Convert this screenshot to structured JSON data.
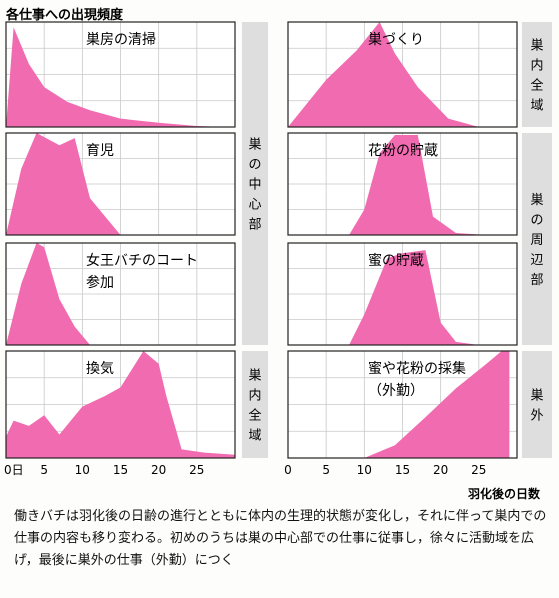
{
  "chart_data": {
    "type": "area",
    "title": "各仕事への出現頻度",
    "xlabel": "羽化後の日数",
    "x_tick_labels": {
      "left": [
        "0日",
        "5",
        "10",
        "15",
        "20",
        "25"
      ],
      "right": [
        "0",
        "5",
        "10",
        "15",
        "20",
        "25"
      ]
    },
    "xlim": [
      0,
      30
    ],
    "ylim": [
      0,
      100
    ],
    "grid": true,
    "fill_color": "#f06bb0",
    "grid_color": "#c8c8c8",
    "panels": [
      {
        "title_lines": [
          "巣房の清掃"
        ],
        "col": 0,
        "row": 0,
        "x": [
          0,
          1,
          3,
          5,
          8,
          11,
          15,
          20,
          25,
          29
        ],
        "y": [
          0,
          95,
          60,
          38,
          24,
          16,
          8,
          4,
          1,
          0
        ]
      },
      {
        "title_lines": [
          "巣づくり"
        ],
        "col": 1,
        "row": 0,
        "x": [
          0,
          5,
          9,
          12,
          14,
          17,
          21,
          25
        ],
        "y": [
          0,
          45,
          73,
          100,
          70,
          38,
          8,
          0
        ]
      },
      {
        "title_lines": [
          "育児"
        ],
        "col": 0,
        "row": 1,
        "x": [
          0,
          2,
          4,
          7,
          9,
          11,
          13,
          15
        ],
        "y": [
          0,
          65,
          100,
          88,
          95,
          36,
          18,
          0
        ]
      },
      {
        "title_lines": [
          "花粉の貯蔵"
        ],
        "col": 1,
        "row": 1,
        "x": [
          0,
          8,
          10,
          12,
          14,
          17,
          19,
          22,
          26
        ],
        "y": [
          0,
          0,
          25,
          80,
          98,
          98,
          18,
          2,
          0
        ]
      },
      {
        "title_lines": [
          "女王バチのコート",
          "参加"
        ],
        "col": 0,
        "row": 2,
        "x": [
          0,
          2,
          4,
          5,
          7,
          9,
          11
        ],
        "y": [
          0,
          60,
          100,
          96,
          45,
          18,
          0
        ]
      },
      {
        "title_lines": [
          "蜜の貯蔵"
        ],
        "col": 1,
        "row": 2,
        "x": [
          0,
          8,
          10,
          13,
          15,
          18,
          20,
          22,
          25
        ],
        "y": [
          0,
          0,
          30,
          85,
          90,
          93,
          22,
          3,
          0
        ]
      },
      {
        "title_lines": [
          "換気"
        ],
        "col": 0,
        "row": 3,
        "x": [
          0,
          1,
          3,
          5,
          7,
          10,
          13,
          15,
          18,
          20,
          21,
          23,
          26,
          30
        ],
        "y": [
          20,
          35,
          30,
          40,
          22,
          48,
          58,
          66,
          100,
          88,
          58,
          8,
          5,
          3
        ]
      },
      {
        "title_lines": [
          "蜜や花粉の採集",
          "（外勤）"
        ],
        "col": 1,
        "row": 3,
        "x": [
          0,
          10,
          14,
          18,
          22,
          26,
          28,
          29
        ],
        "y": [
          0,
          0,
          12,
          38,
          65,
          88,
          100,
          100
        ]
      }
    ],
    "bands": [
      {
        "text": "巣内全域",
        "col": 1,
        "rows": [
          0,
          0
        ]
      },
      {
        "text": "巣の中心部",
        "col": 0,
        "rows": [
          0,
          2
        ]
      },
      {
        "text": "巣の周辺部",
        "col": 1,
        "rows": [
          1,
          2
        ]
      },
      {
        "text": "巣内全域",
        "col": 0,
        "rows": [
          3,
          3
        ]
      },
      {
        "text": "巣外",
        "col": 1,
        "rows": [
          3,
          3
        ]
      }
    ]
  },
  "caption": "働きバチは羽化後の日齢の進行とともに体内の生理的状態が変化し，それに伴って巣内での仕事の内容も移り変わる。初めのうちは巣の中心部での仕事に従事し，徐々に活動域を広げ，最後に巣外の仕事（外勤）につく"
}
